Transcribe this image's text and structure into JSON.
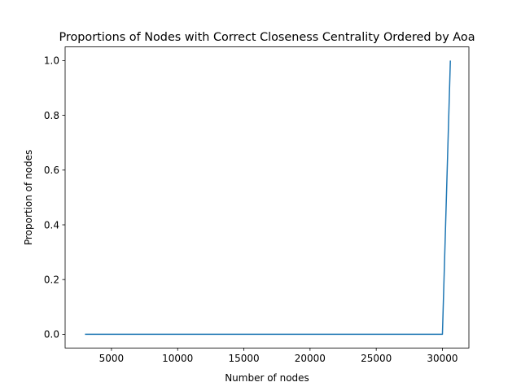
{
  "chart_data": {
    "type": "line",
    "title": "Proportions of Nodes with Correct Closeness Centrality Ordered by Aoa",
    "xlabel": "Number of nodes",
    "ylabel": "Proportion of nodes",
    "xlim": [
      1500,
      32000
    ],
    "ylim": [
      -0.05,
      1.05
    ],
    "xticks": [
      5000,
      10000,
      15000,
      20000,
      25000,
      30000
    ],
    "yticks": [
      0.0,
      0.2,
      0.4,
      0.6,
      0.8,
      1.0
    ],
    "grid": false,
    "series": [
      {
        "color": "#1f77b4",
        "x": [
          3000,
          30000,
          30600
        ],
        "y": [
          0.0,
          0.0,
          1.0
        ]
      }
    ]
  }
}
